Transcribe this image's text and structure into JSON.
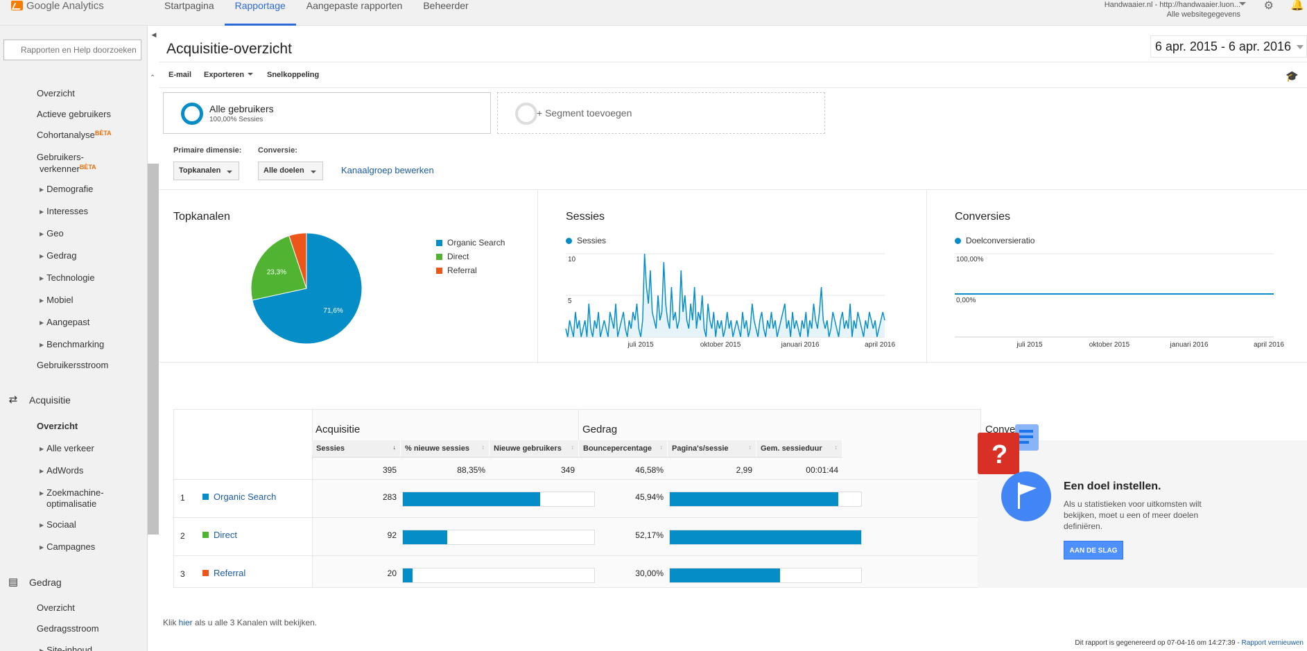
{
  "app": {
    "title": "Google Analytics",
    "nav_tabs": [
      "Startpagina",
      "Rapportage",
      "Aangepaste rapporten",
      "Beheerder"
    ],
    "active_tab": "Rapportage",
    "account_line1": "Handwaaier.nl - http://handwaaier.luon...",
    "account_line2": "Alle websitegegevens"
  },
  "sidebar": {
    "search_placeholder": "Rapporten en Help doorzoeken",
    "audience_items": [
      {
        "label": "Overzicht"
      },
      {
        "label": "Actieve gebruikers"
      },
      {
        "label": "Cohortanalyse",
        "badge": "BÈTA"
      },
      {
        "label": "Gebruikers-",
        "label2": "verkenner",
        "badge": "BÈTA"
      },
      {
        "label": "Demografie"
      },
      {
        "label": "Interesses"
      },
      {
        "label": "Geo"
      },
      {
        "label": "Gedrag"
      },
      {
        "label": "Technologie"
      },
      {
        "label": "Mobiel"
      },
      {
        "label": "Aangepast"
      },
      {
        "label": "Benchmarking"
      },
      {
        "label": "Gebruikersstroom"
      }
    ],
    "acquisition": {
      "label": "Acquisitie",
      "items": [
        {
          "label": "Overzicht"
        },
        {
          "label": "Alle verkeer"
        },
        {
          "label": "AdWords"
        },
        {
          "label": "Zoekmachine-",
          "label2": "optimalisatie"
        },
        {
          "label": "Sociaal"
        },
        {
          "label": "Campagnes"
        }
      ]
    },
    "behavior": {
      "label": "Gedrag",
      "items": [
        {
          "label": "Overzicht"
        },
        {
          "label": "Gedragsstroom"
        },
        {
          "label": "Site-inhoud"
        }
      ]
    }
  },
  "page": {
    "title": "Acquisitie-overzicht",
    "date_range": "6 apr. 2015 - 6 apr. 2016",
    "toolbar": {
      "email": "E-mail",
      "export": "Exporteren",
      "shortcut": "Snelkoppeling"
    },
    "segment1": {
      "name": "Alle gebruikers",
      "sub": "100,00% Sessies"
    },
    "segment2": {
      "name": "+ Segment toevoegen"
    },
    "primary_dimension_label": "Primaire dimensie:",
    "primary_dimension_value": "Topkanalen",
    "conversion_label": "Conversie:",
    "conversion_value": "Alle doelen",
    "channel_group_link": "Kanaalgroep bewerken"
  },
  "colors": {
    "organic": "#058dc7",
    "direct": "#50b432",
    "referral": "#ed561b"
  },
  "chart_data": [
    {
      "type": "pie",
      "title": "Topkanalen",
      "categories": [
        "Organic Search",
        "Direct",
        "Referral"
      ],
      "values": [
        71.6,
        23.3,
        5.1
      ],
      "labels": [
        "71,6%",
        "23,3%",
        ""
      ]
    },
    {
      "type": "area",
      "title": "Sessies",
      "series": [
        {
          "name": "Sessies",
          "values": [
            1,
            0,
            2,
            1,
            0,
            3,
            1,
            2,
            0,
            1,
            2,
            0,
            4,
            1,
            0,
            2,
            1,
            3,
            0,
            1,
            2,
            1,
            0,
            3,
            2,
            1,
            4,
            0,
            1,
            2,
            3,
            1,
            0,
            2,
            1,
            3,
            2,
            4,
            1,
            0,
            2,
            10,
            6,
            4,
            8,
            3,
            2,
            1,
            5,
            2,
            3,
            9,
            4,
            2,
            1,
            6,
            2,
            3,
            1,
            2,
            8,
            3,
            5,
            2,
            1,
            4,
            2,
            6,
            1,
            3,
            2,
            5,
            1,
            0,
            4,
            2,
            1,
            3,
            0,
            2,
            1,
            2,
            0,
            1,
            3,
            1,
            2,
            0,
            1,
            2,
            1,
            0,
            3,
            1,
            2,
            0,
            1,
            4,
            2,
            1,
            0,
            2,
            3,
            1,
            0,
            2,
            1,
            3,
            1,
            2,
            0,
            1,
            2,
            3,
            4,
            1,
            2,
            0,
            3,
            1,
            2,
            1,
            0,
            2,
            1,
            3,
            0,
            2,
            1,
            4,
            2,
            1,
            3,
            6,
            2,
            1,
            2,
            0,
            1,
            3,
            2,
            1,
            0,
            2,
            3,
            1,
            2,
            1,
            4,
            0,
            2,
            1,
            3,
            2,
            1,
            0,
            2,
            1,
            3,
            2,
            1,
            2,
            0,
            1,
            2,
            3,
            2
          ]
        }
      ],
      "x_ticks": [
        "juli 2015",
        "oktober 2015",
        "januari 2016",
        "april 2016"
      ],
      "y_ticks": [
        "10",
        "5"
      ],
      "ylim": [
        0,
        10
      ]
    },
    {
      "type": "line",
      "title": "Conversies",
      "series": [
        {
          "name": "Doelconversieratio",
          "values": [
            0,
            0
          ]
        }
      ],
      "x_ticks": [
        "juli 2015",
        "oktober 2015",
        "januari 2016",
        "april 2016"
      ],
      "y_ticks": [
        "100,00%",
        "0,00%"
      ],
      "ylim": [
        0,
        100
      ]
    },
    {
      "type": "table",
      "group_headers": [
        "Acquisitie",
        "Gedrag",
        "Conversies"
      ],
      "columns": [
        "Sessies",
        "% nieuwe sessies",
        "Nieuwe gebruikers",
        "Bouncepercentage",
        "Pagina's/sessie",
        "Gem. sessieduur"
      ],
      "totals": [
        "395",
        "88,35%",
        "349",
        "46,58%",
        "2,99",
        "00:01:44"
      ],
      "rows": [
        {
          "rank": "1",
          "channel": "Organic Search",
          "sessions": "283",
          "sessions_share": 0.716,
          "bounce": "45,94%",
          "bounce_share": 0.881
        },
        {
          "rank": "2",
          "channel": "Direct",
          "sessions": "92",
          "sessions_share": 0.233,
          "bounce": "52,17%",
          "bounce_share": 1.0
        },
        {
          "rank": "3",
          "channel": "Referral",
          "sessions": "20",
          "sessions_share": 0.051,
          "bounce": "30,00%",
          "bounce_share": 0.575
        }
      ]
    }
  ],
  "goal": {
    "title": "Een doel instellen.",
    "text": "Als u statistieken voor uitkomsten wilt bekijken, moet u een of meer doelen definiëren.",
    "button": "AAN DE SLAG"
  },
  "footer": {
    "link_prefix": "Klik ",
    "link_text": "hier",
    "link_suffix": " als u alle 3 Kanalen wilt bekijken.",
    "generated": "Dit rapport is gegenereerd op 07-04-16 om 14:27:39 - ",
    "refresh": "Rapport vernieuwen"
  }
}
